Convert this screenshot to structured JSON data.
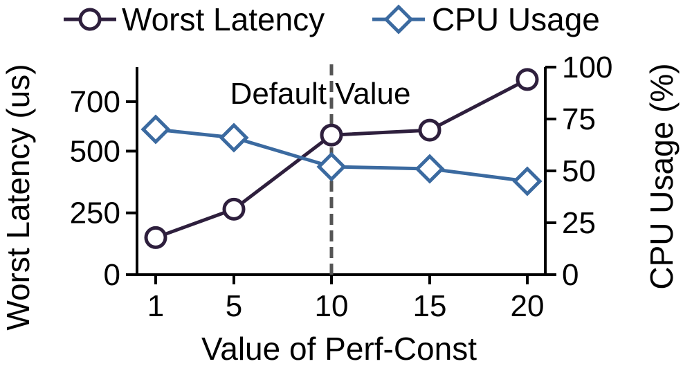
{
  "chart_data": {
    "type": "line",
    "x": [
      1,
      5,
      10,
      15,
      20
    ],
    "xlabel": "Value of Perf-Const",
    "x_tick_labels": [
      "1",
      "5",
      "10",
      "15",
      "20"
    ],
    "y_left": {
      "label": "Worst Latency (us)",
      "ticks": [
        0,
        250,
        500,
        700
      ],
      "tick_labels": [
        "0",
        "250",
        "500",
        "700"
      ],
      "ylim": [
        0,
        840
      ]
    },
    "y_right": {
      "label": "CPU Usage (%)",
      "ticks": [
        0,
        25,
        50,
        75,
        100
      ],
      "tick_labels": [
        "0",
        "25",
        "50",
        "75",
        "100"
      ],
      "ylim": [
        0,
        100
      ]
    },
    "series": [
      {
        "name": "Worst Latency",
        "axis": "left",
        "marker": "circle",
        "color": "#2e1f3d",
        "values": [
          150,
          265,
          565,
          585,
          790
        ]
      },
      {
        "name": "CPU Usage",
        "axis": "right",
        "marker": "diamond",
        "color": "#3b6aa0",
        "values": [
          70,
          66,
          52,
          51,
          45
        ]
      }
    ],
    "annotations": [
      {
        "text": "Default Value",
        "x": 10,
        "style": "dashed-vertical-line",
        "color": "#555555"
      }
    ],
    "legend": {
      "position": "top",
      "entries": [
        "Worst Latency",
        "CPU Usage"
      ]
    },
    "grid": false
  }
}
